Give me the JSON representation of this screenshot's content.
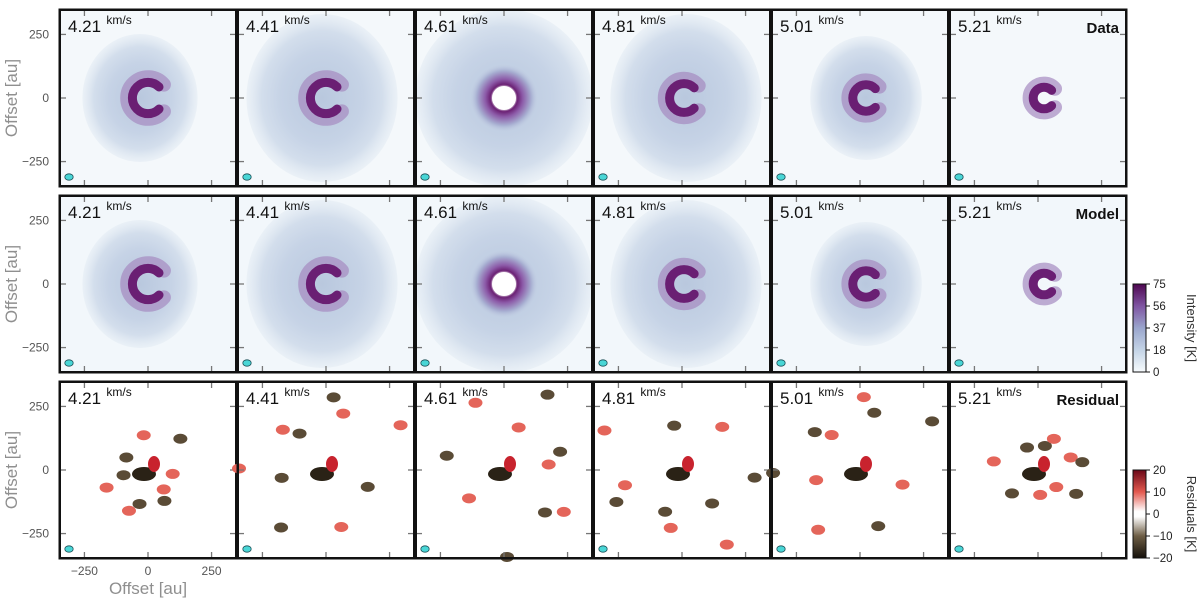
{
  "chart_data": {
    "type": "heatmap",
    "description_kind": "channel maps grid",
    "columns": [
      {
        "velocity": "4.21",
        "unit": "km/s"
      },
      {
        "velocity": "4.41",
        "unit": "km/s"
      },
      {
        "velocity": "4.61",
        "unit": "km/s"
      },
      {
        "velocity": "4.81",
        "unit": "km/s"
      },
      {
        "velocity": "5.01",
        "unit": "km/s"
      },
      {
        "velocity": "5.21",
        "unit": "km/s"
      }
    ],
    "rows": [
      {
        "title": "Data",
        "kind": "intensity"
      },
      {
        "title": "Model",
        "kind": "intensity"
      },
      {
        "title": "Residual",
        "kind": "residual"
      }
    ],
    "ylabel": "Offset [au]",
    "xlabel": "Offset [au]",
    "y_ticks": [
      "250",
      "0",
      "−250"
    ],
    "x_ticks": [
      "−250",
      "0",
      "250"
    ],
    "xlim": [
      -350,
      350
    ],
    "ylim": [
      -350,
      350
    ],
    "colorbars": [
      {
        "label": "Intensity [K]",
        "ticks": [
          "75",
          "56",
          "37",
          "18",
          "0"
        ],
        "vmin": 0,
        "vmax": 75,
        "colors": [
          "#f7fbfd",
          "#b7c9de",
          "#8b92c0",
          "#7e4c9c",
          "#5a0a5a"
        ]
      },
      {
        "label": "Residuals [K]",
        "ticks": [
          "20",
          "10",
          "0",
          "−10",
          "−20"
        ],
        "vmin": -20,
        "vmax": 20,
        "colors": [
          "#1a1208",
          "#6e5e45",
          "#ffffff",
          "#e45a4f",
          "#7a0c1e"
        ]
      }
    ],
    "beam_color": "#49d6d6"
  }
}
